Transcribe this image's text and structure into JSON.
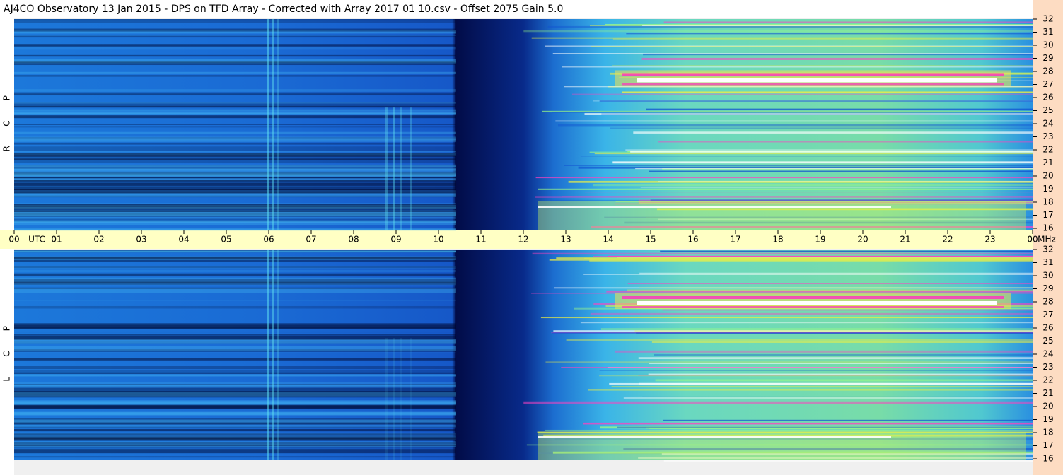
{
  "title": "AJ4CO Observatory  13 Jan 2015  -  DPS on TFD Array  -  Corrected with Array 2017 01 10.csv  -  Offset 2075  Gain 5.0",
  "panels": [
    {
      "letters": [
        "R",
        "C",
        "P"
      ]
    },
    {
      "letters": [
        "L",
        "C",
        "P"
      ]
    }
  ],
  "time_axis": {
    "hours": [
      "00",
      "01",
      "02",
      "03",
      "04",
      "05",
      "06",
      "07",
      "08",
      "09",
      "10",
      "11",
      "12",
      "13",
      "14",
      "15",
      "16",
      "17",
      "18",
      "19",
      "20",
      "21",
      "22",
      "23",
      "00"
    ],
    "unit": "UTC"
  },
  "freq_axis": {
    "ticks": [
      32,
      31,
      30,
      29,
      28,
      27,
      26,
      25,
      24,
      23,
      22,
      21,
      20,
      19,
      18,
      17,
      16
    ],
    "unit": "MHz"
  }
}
